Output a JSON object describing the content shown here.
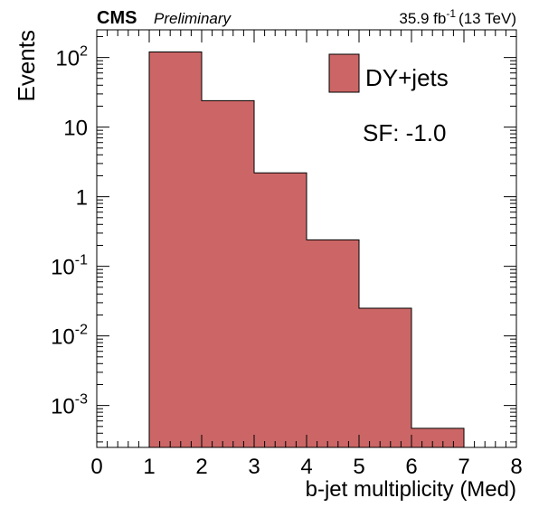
{
  "header": {
    "experiment": "CMS",
    "status": "Preliminary",
    "lumi_value": "35.9 fb",
    "lumi_exp": "-1",
    "energy": "(13 TeV)"
  },
  "annotation": {
    "sf_text": "SF: -1.0"
  },
  "colors": {
    "fill": "#cc6666",
    "stroke": "#000000"
  },
  "chart_data": {
    "type": "bar",
    "title": "",
    "xlabel": "b-jet multiplicity (Med)",
    "ylabel": "Events",
    "yscale": "log",
    "xlim": [
      0,
      8
    ],
    "ylim": [
      0.00025,
      250
    ],
    "legend_position": "top-right",
    "grid": false,
    "x_ticks": [
      "0",
      "1",
      "2",
      "3",
      "4",
      "5",
      "6",
      "7",
      "8"
    ],
    "y_ticks": [
      {
        "value": 0.001,
        "base": "10",
        "exp": "-3"
      },
      {
        "value": 0.01,
        "base": "10",
        "exp": "-2"
      },
      {
        "value": 0.1,
        "base": "10",
        "exp": "-1"
      },
      {
        "value": 1,
        "base": "1",
        "exp": ""
      },
      {
        "value": 10,
        "base": "10",
        "exp": ""
      },
      {
        "value": 100,
        "base": "10",
        "exp": "2"
      }
    ],
    "series": [
      {
        "name": "DY+jets",
        "bins": [
          {
            "low": 1,
            "high": 2,
            "value": 120
          },
          {
            "low": 2,
            "high": 3,
            "value": 24
          },
          {
            "low": 3,
            "high": 4,
            "value": 2.2
          },
          {
            "low": 4,
            "high": 5,
            "value": 0.24
          },
          {
            "low": 5,
            "high": 6,
            "value": 0.025
          },
          {
            "low": 6,
            "high": 7,
            "value": 0.00047
          }
        ]
      }
    ]
  }
}
